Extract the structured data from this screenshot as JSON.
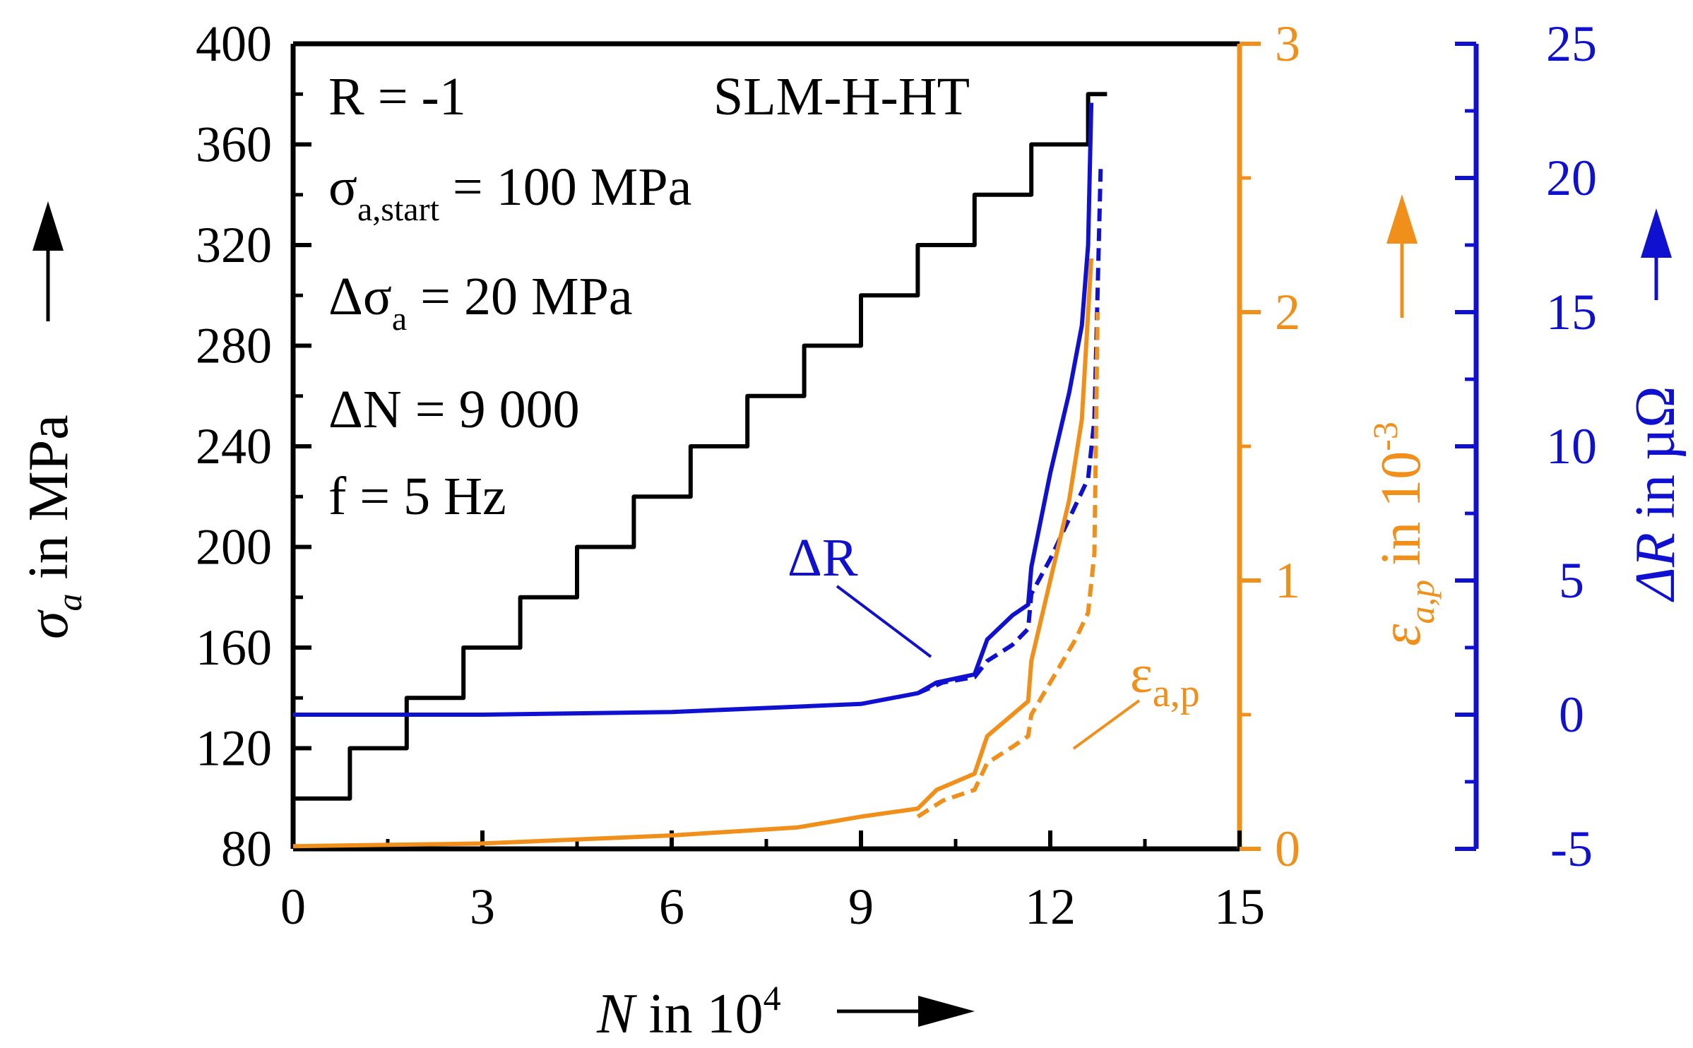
{
  "chart_data": {
    "type": "line",
    "colors": {
      "stress": "#000000",
      "strain": "#f0901a",
      "resistance": "#1010d0"
    },
    "x_axis": {
      "label_var": "N",
      "label_text": " in 10",
      "label_sup": "4",
      "range": [
        0,
        15
      ],
      "ticks": [
        0,
        3,
        6,
        9,
        12,
        15
      ]
    },
    "y_left": {
      "label_var": "σ",
      "label_sub": "a",
      "label_text": " in MPa",
      "range": [
        80,
        400
      ],
      "ticks": [
        80,
        120,
        160,
        200,
        240,
        280,
        320,
        360,
        400
      ]
    },
    "y_right1": {
      "label_var": "ε",
      "label_sub": "a,p",
      "label_text": " in 10",
      "label_sup": "-3",
      "range": [
        0,
        3
      ],
      "ticks": [
        0,
        1,
        2,
        3
      ]
    },
    "y_right2": {
      "label_var": "ΔR",
      "label_text": " in µΩ",
      "range": [
        -5,
        25
      ],
      "ticks": [
        -5,
        0,
        5,
        10,
        15,
        20,
        25
      ]
    },
    "annotations": {
      "r_ratio": "R = -1",
      "sigma_start_main": "σ",
      "sigma_start_sub": "a,start",
      "sigma_start_value": " = 100 MPa",
      "delta_sigma_main": "Δσ",
      "delta_sigma_sub": "a",
      "delta_sigma_value": " = 20 MPa",
      "delta_n": "ΔN = 9 000",
      "frequency": "f = 5 Hz",
      "specimen": "SLM-H-HT",
      "delta_r_label": "ΔR",
      "eps_label_main": "ε",
      "eps_label_sub": "a,p"
    },
    "series": [
      {
        "name": "stress amplitude",
        "axis": "left",
        "style": "solid",
        "points": [
          [
            0,
            100
          ],
          [
            0.9,
            100
          ],
          [
            0.9,
            120
          ],
          [
            1.8,
            120
          ],
          [
            1.8,
            140
          ],
          [
            2.7,
            140
          ],
          [
            2.7,
            160
          ],
          [
            3.6,
            160
          ],
          [
            3.6,
            180
          ],
          [
            4.5,
            180
          ],
          [
            4.5,
            200
          ],
          [
            5.4,
            200
          ],
          [
            5.4,
            220
          ],
          [
            6.3,
            220
          ],
          [
            6.3,
            240
          ],
          [
            7.2,
            240
          ],
          [
            7.2,
            260
          ],
          [
            8.1,
            260
          ],
          [
            8.1,
            280
          ],
          [
            9.0,
            280
          ],
          [
            9.0,
            300
          ],
          [
            9.9,
            300
          ],
          [
            9.9,
            320
          ],
          [
            10.8,
            320
          ],
          [
            10.8,
            340
          ],
          [
            11.7,
            340
          ],
          [
            11.7,
            360
          ],
          [
            12.6,
            360
          ],
          [
            12.6,
            380
          ],
          [
            12.9,
            380
          ]
        ]
      },
      {
        "name": "ΔR solid",
        "axis": "right2",
        "style": "solid",
        "points": [
          [
            0,
            0
          ],
          [
            3,
            0
          ],
          [
            6,
            0.1
          ],
          [
            8,
            0.3
          ],
          [
            9,
            0.4
          ],
          [
            9.9,
            0.8
          ],
          [
            10.2,
            1.2
          ],
          [
            10.8,
            1.5
          ],
          [
            11.0,
            2.8
          ],
          [
            11.4,
            3.7
          ],
          [
            11.65,
            4.1
          ],
          [
            11.7,
            5.5
          ],
          [
            12.0,
            9
          ],
          [
            12.3,
            12
          ],
          [
            12.5,
            14.5
          ],
          [
            12.6,
            17.5
          ],
          [
            12.65,
            22.8
          ]
        ]
      },
      {
        "name": "ΔR dashed",
        "axis": "right2",
        "style": "dashed",
        "points": [
          [
            9.9,
            0.8
          ],
          [
            10.3,
            1.2
          ],
          [
            10.8,
            1.4
          ],
          [
            11.0,
            2.0
          ],
          [
            11.4,
            2.6
          ],
          [
            11.65,
            3.2
          ],
          [
            11.7,
            4.5
          ],
          [
            12.0,
            5.8
          ],
          [
            12.4,
            7.8
          ],
          [
            12.6,
            8.8
          ],
          [
            12.7,
            11
          ],
          [
            12.8,
            20.5
          ]
        ]
      },
      {
        "name": "ε solid",
        "axis": "right1",
        "style": "solid",
        "points": [
          [
            0,
            0.01
          ],
          [
            3,
            0.02
          ],
          [
            6,
            0.05
          ],
          [
            8,
            0.08
          ],
          [
            9,
            0.12
          ],
          [
            9.9,
            0.15
          ],
          [
            10.2,
            0.22
          ],
          [
            10.8,
            0.28
          ],
          [
            11.0,
            0.42
          ],
          [
            11.4,
            0.5
          ],
          [
            11.65,
            0.55
          ],
          [
            11.7,
            0.7
          ],
          [
            12.0,
            1.0
          ],
          [
            12.3,
            1.3
          ],
          [
            12.5,
            1.6
          ],
          [
            12.65,
            2.2
          ]
        ]
      },
      {
        "name": "ε dashed",
        "axis": "right1",
        "style": "dashed",
        "points": [
          [
            9.9,
            0.12
          ],
          [
            10.3,
            0.18
          ],
          [
            10.8,
            0.22
          ],
          [
            11.0,
            0.32
          ],
          [
            11.4,
            0.38
          ],
          [
            11.65,
            0.42
          ],
          [
            11.7,
            0.5
          ],
          [
            12.0,
            0.62
          ],
          [
            12.4,
            0.78
          ],
          [
            12.6,
            0.88
          ],
          [
            12.7,
            1.1
          ],
          [
            12.75,
            2.0
          ]
        ]
      }
    ]
  }
}
